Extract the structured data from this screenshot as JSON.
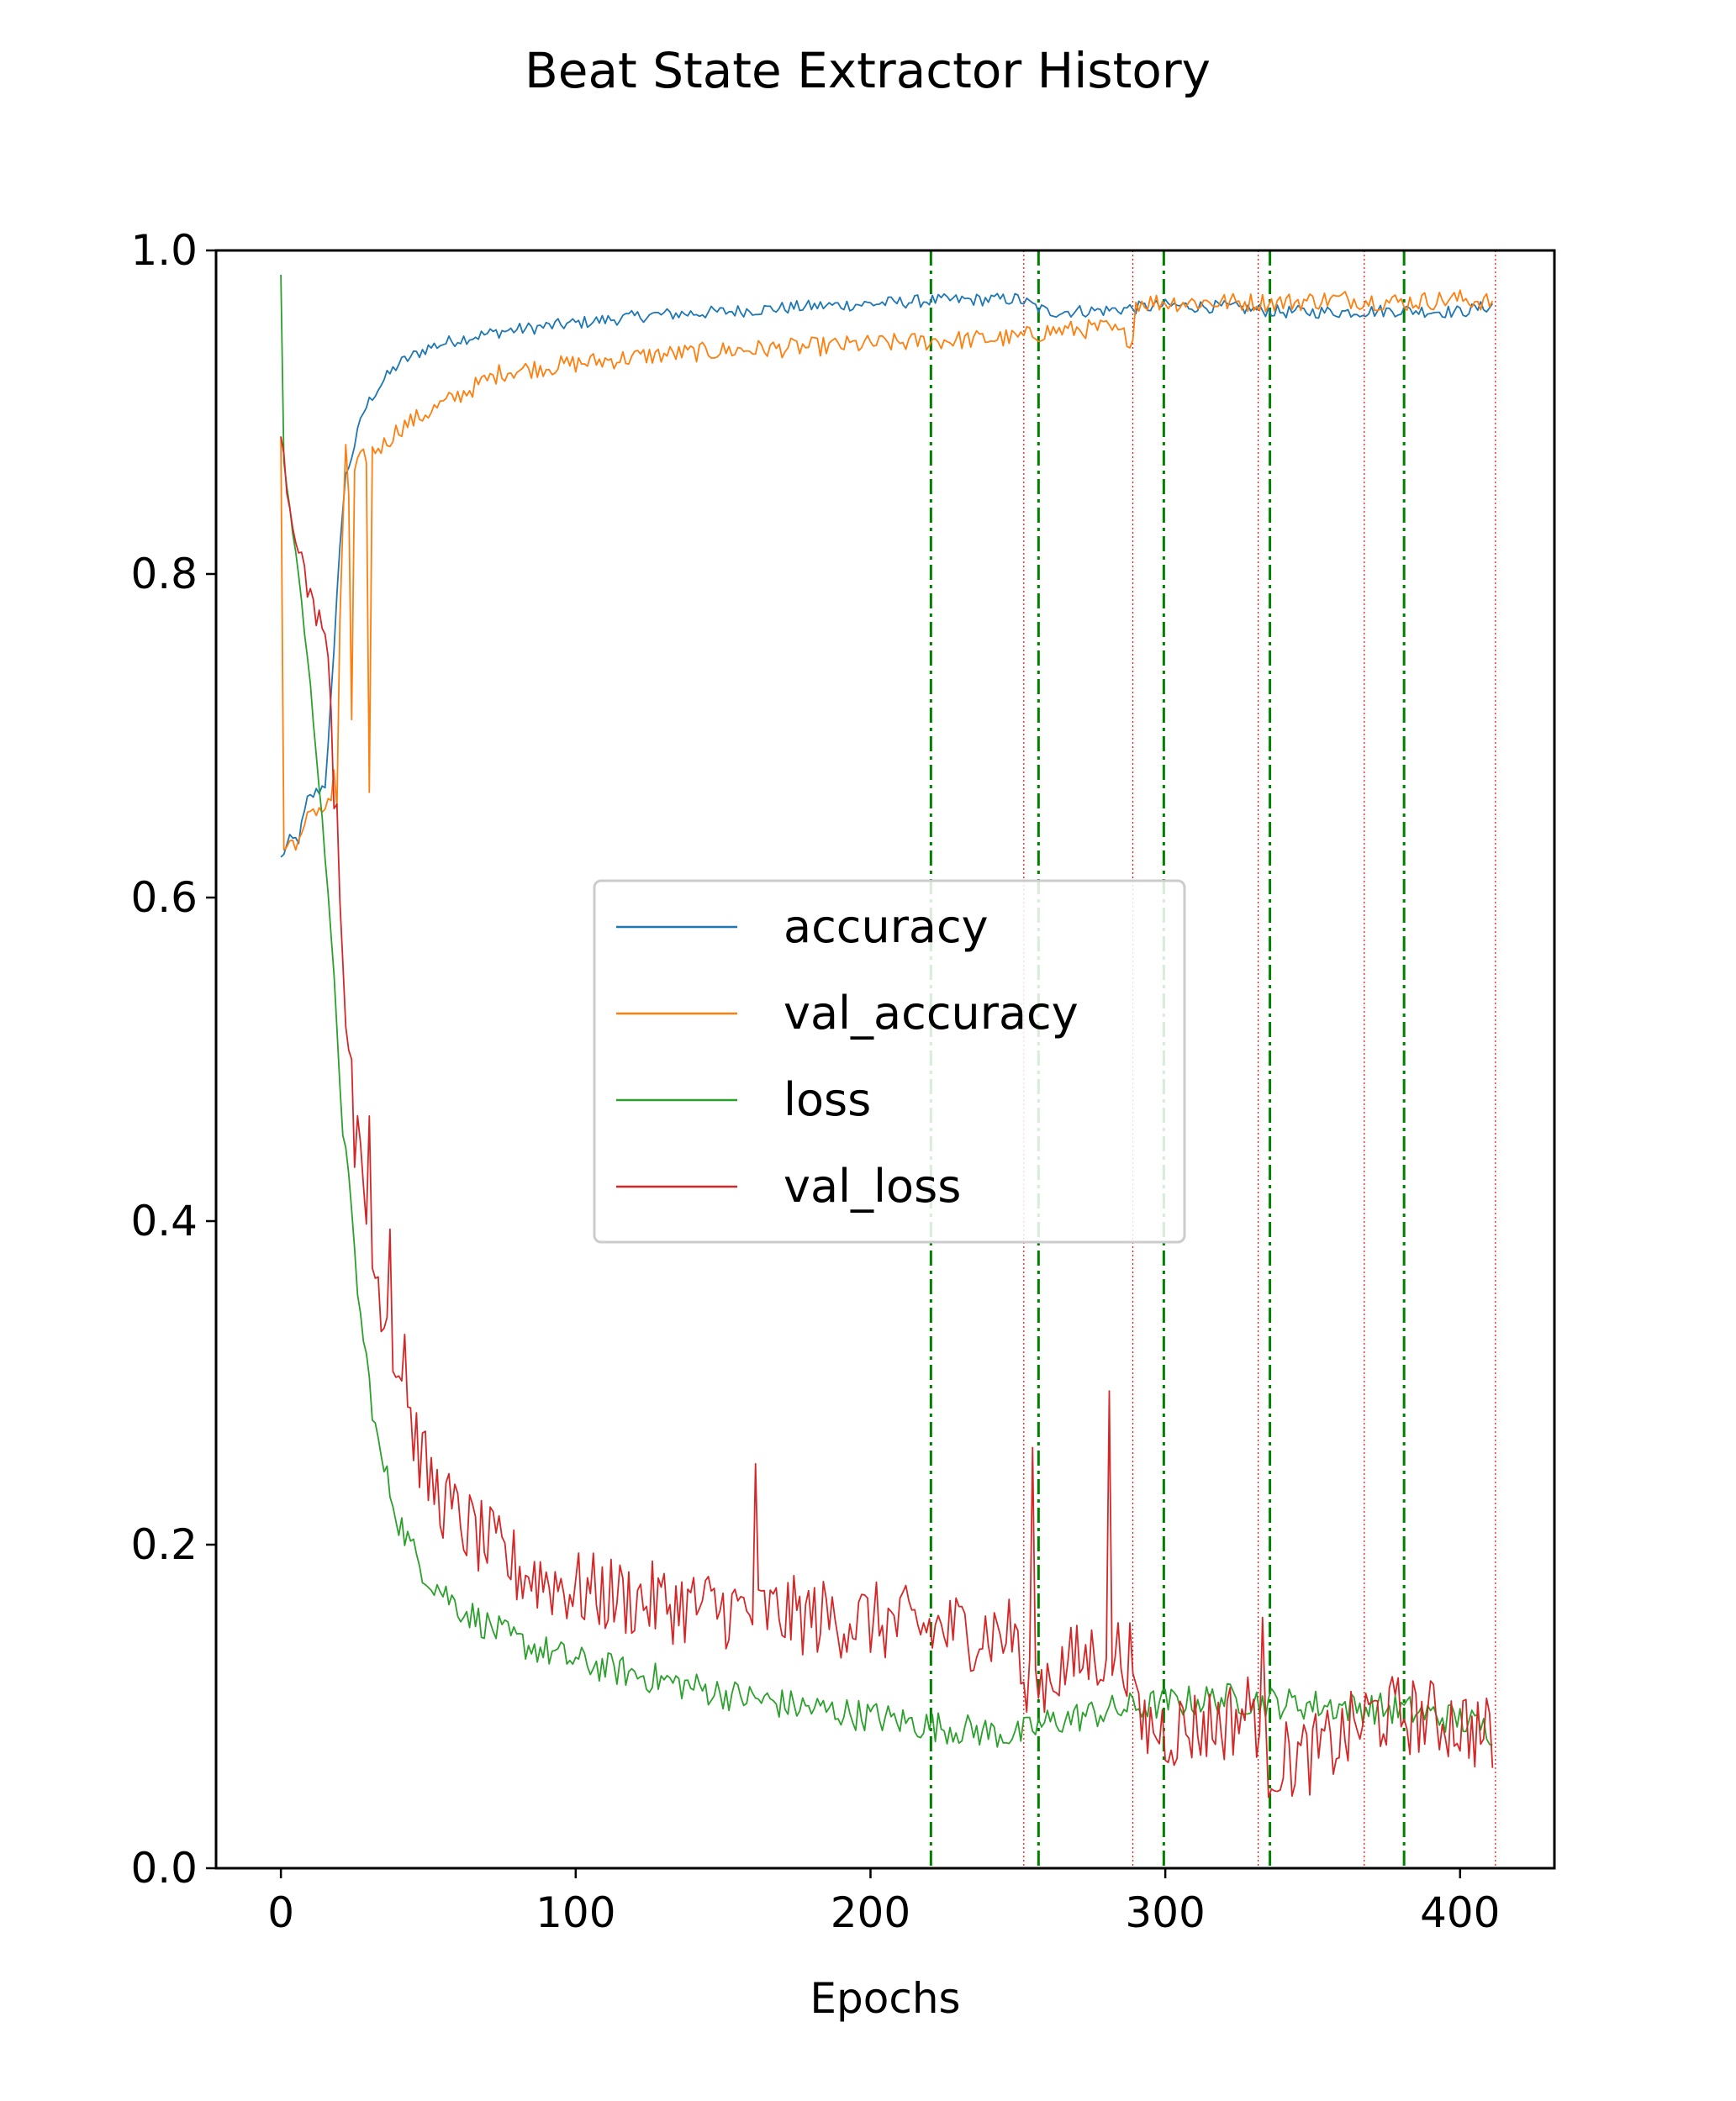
{
  "chart_data": {
    "type": "line",
    "title": "Beat State Extractor History",
    "xlabel": "Epochs",
    "ylabel": "",
    "xlim": [
      -22,
      432
    ],
    "ylim": [
      0.0,
      1.0
    ],
    "xticks": [
      0,
      100,
      200,
      300,
      400
    ],
    "xtick_labels": [
      "0",
      "100",
      "200",
      "300",
      "400"
    ],
    "yticks": [
      0.0,
      0.2,
      0.4,
      0.6,
      0.8,
      1.0
    ],
    "ytick_labels": [
      "0.0",
      "0.2",
      "0.4",
      "0.6",
      "0.8",
      "1.0"
    ],
    "grid": false,
    "legend": {
      "position": "center",
      "entries": [
        "accuracy",
        "val_accuracy",
        "loss",
        "val_loss"
      ]
    },
    "n_epochs": 412,
    "series": [
      {
        "name": "accuracy",
        "color": "#1f77b4",
        "anchors": [
          [
            0,
            0.625
          ],
          [
            3,
            0.635
          ],
          [
            6,
            0.636
          ],
          [
            9,
            0.66
          ],
          [
            12,
            0.665
          ],
          [
            15,
            0.67
          ],
          [
            18,
            0.75
          ],
          [
            20,
            0.82
          ],
          [
            22,
            0.86
          ],
          [
            25,
            0.88
          ],
          [
            28,
            0.9
          ],
          [
            31,
            0.91
          ],
          [
            35,
            0.92
          ],
          [
            40,
            0.93
          ],
          [
            50,
            0.94
          ],
          [
            60,
            0.945
          ],
          [
            75,
            0.95
          ],
          [
            100,
            0.955
          ],
          [
            125,
            0.96
          ],
          [
            150,
            0.962
          ],
          [
            175,
            0.965
          ],
          [
            200,
            0.967
          ],
          [
            220,
            0.969
          ],
          [
            250,
            0.97
          ],
          [
            260,
            0.962
          ],
          [
            280,
            0.963
          ],
          [
            300,
            0.966
          ],
          [
            320,
            0.965
          ],
          [
            340,
            0.962
          ],
          [
            360,
            0.962
          ],
          [
            380,
            0.963
          ],
          [
            400,
            0.962
          ],
          [
            411,
            0.966
          ]
        ],
        "noise": 0.004
      },
      {
        "name": "val_accuracy",
        "color": "#ff7f0e",
        "anchors": [
          [
            0,
            0.885
          ],
          [
            1,
            0.63
          ],
          [
            4,
            0.635
          ],
          [
            7,
            0.635
          ],
          [
            10,
            0.655
          ],
          [
            15,
            0.655
          ],
          [
            17,
            0.66
          ],
          [
            19,
            0.7
          ],
          [
            21,
            0.83
          ],
          [
            24,
            0.86
          ],
          [
            27,
            0.87
          ],
          [
            30,
            0.875
          ],
          [
            35,
            0.88
          ],
          [
            40,
            0.89
          ],
          [
            50,
            0.9
          ],
          [
            60,
            0.91
          ],
          [
            75,
            0.925
          ],
          [
            100,
            0.93
          ],
          [
            125,
            0.935
          ],
          [
            150,
            0.938
          ],
          [
            175,
            0.94
          ],
          [
            200,
            0.942
          ],
          [
            220,
            0.944
          ],
          [
            250,
            0.946
          ],
          [
            260,
            0.95
          ],
          [
            280,
            0.952
          ],
          [
            289,
            0.945
          ],
          [
            290,
            0.968
          ],
          [
            300,
            0.968
          ],
          [
            320,
            0.968
          ],
          [
            340,
            0.968
          ],
          [
            360,
            0.97
          ],
          [
            380,
            0.968
          ],
          [
            400,
            0.97
          ],
          [
            411,
            0.968
          ]
        ],
        "noise": 0.006,
        "spikes": [
          [
            17,
            0.66
          ],
          [
            19,
            0.655
          ],
          [
            22,
            0.88
          ],
          [
            24,
            0.71
          ],
          [
            30,
            0.665
          ]
        ]
      },
      {
        "name": "loss",
        "color": "#2ca02c",
        "anchors": [
          [
            0,
            0.985
          ],
          [
            1,
            0.87
          ],
          [
            3,
            0.84
          ],
          [
            6,
            0.8
          ],
          [
            10,
            0.73
          ],
          [
            14,
            0.65
          ],
          [
            18,
            0.55
          ],
          [
            21,
            0.46
          ],
          [
            24,
            0.4
          ],
          [
            27,
            0.34
          ],
          [
            30,
            0.3
          ],
          [
            33,
            0.26
          ],
          [
            36,
            0.24
          ],
          [
            40,
            0.215
          ],
          [
            45,
            0.195
          ],
          [
            50,
            0.18
          ],
          [
            60,
            0.162
          ],
          [
            70,
            0.15
          ],
          [
            80,
            0.14
          ],
          [
            100,
            0.128
          ],
          [
            125,
            0.118
          ],
          [
            150,
            0.108
          ],
          [
            175,
            0.1
          ],
          [
            200,
            0.094
          ],
          [
            220,
            0.088
          ],
          [
            250,
            0.082
          ],
          [
            260,
            0.09
          ],
          [
            280,
            0.097
          ],
          [
            300,
            0.102
          ],
          [
            320,
            0.105
          ],
          [
            340,
            0.102
          ],
          [
            360,
            0.1
          ],
          [
            380,
            0.098
          ],
          [
            400,
            0.092
          ],
          [
            411,
            0.085
          ]
        ],
        "noise": 0.01
      },
      {
        "name": "val_loss",
        "color": "#d62728",
        "anchors": [
          [
            0,
            0.885
          ],
          [
            3,
            0.84
          ],
          [
            6,
            0.82
          ],
          [
            9,
            0.79
          ],
          [
            12,
            0.775
          ],
          [
            15,
            0.77
          ],
          [
            18,
            0.7
          ],
          [
            21,
            0.58
          ],
          [
            24,
            0.47
          ],
          [
            27,
            0.43
          ],
          [
            30,
            0.38
          ],
          [
            35,
            0.35
          ],
          [
            40,
            0.31
          ],
          [
            45,
            0.27
          ],
          [
            50,
            0.24
          ],
          [
            60,
            0.215
          ],
          [
            70,
            0.2
          ],
          [
            80,
            0.185
          ],
          [
            100,
            0.172
          ],
          [
            125,
            0.165
          ],
          [
            150,
            0.16
          ],
          [
            175,
            0.156
          ],
          [
            200,
            0.153
          ],
          [
            220,
            0.148
          ],
          [
            250,
            0.145
          ],
          [
            252,
            0.1
          ],
          [
            260,
            0.12
          ],
          [
            280,
            0.135
          ],
          [
            289,
            0.13
          ],
          [
            290,
            0.09
          ],
          [
            300,
            0.085
          ],
          [
            320,
            0.09
          ],
          [
            330,
            0.1
          ],
          [
            335,
            0.065
          ],
          [
            350,
            0.07
          ],
          [
            360,
            0.08
          ],
          [
            370,
            0.095
          ],
          [
            380,
            0.095
          ],
          [
            400,
            0.09
          ],
          [
            411,
            0.08
          ]
        ],
        "noise": 0.025,
        "spikes": [
          [
            18,
            0.655
          ],
          [
            21,
            0.56
          ],
          [
            24,
            0.5
          ],
          [
            30,
            0.465
          ],
          [
            37,
            0.395
          ],
          [
            42,
            0.33
          ],
          [
            161,
            0.25
          ],
          [
            255,
            0.26
          ],
          [
            281,
            0.295
          ],
          [
            333,
            0.155
          ]
        ]
      }
    ],
    "vlines": [
      {
        "x": 220.5,
        "color": "#008000",
        "style": "dashdot"
      },
      {
        "x": 257,
        "color": "#008000",
        "style": "dashdot"
      },
      {
        "x": 299.5,
        "color": "#008000",
        "style": "dashdot"
      },
      {
        "x": 335.5,
        "color": "#008000",
        "style": "dashdot"
      },
      {
        "x": 381,
        "color": "#008000",
        "style": "dashdot"
      },
      {
        "x": 252,
        "color": "#ff0000",
        "style": "dotted"
      },
      {
        "x": 289,
        "color": "#ff0000",
        "style": "dotted"
      },
      {
        "x": 331.5,
        "color": "#ff0000",
        "style": "dotted"
      },
      {
        "x": 367.5,
        "color": "#ff0000",
        "style": "dotted"
      },
      {
        "x": 412,
        "color": "#ff0000",
        "style": "dotted"
      }
    ]
  }
}
